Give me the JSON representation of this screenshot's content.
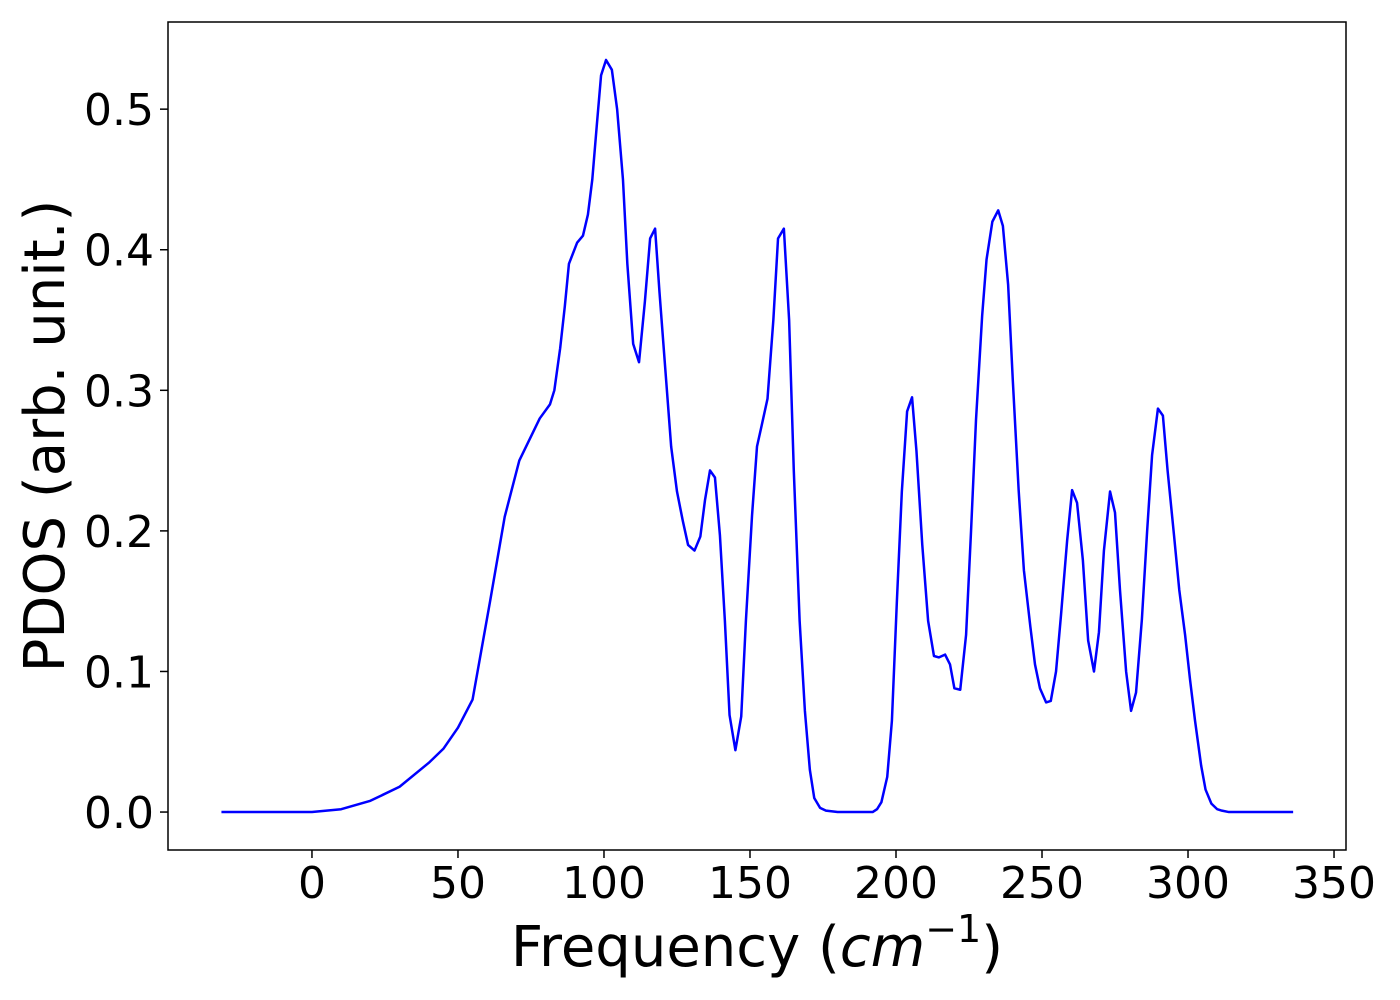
{
  "chart_data": {
    "type": "line",
    "xlabel": [
      "Frequency (",
      "cm",
      "−1",
      ")"
    ],
    "ylabel": "PDOS (arb. unit.)",
    "color": "#0000ff",
    "xlim": [
      -49.3,
      354.1
    ],
    "ylim": [
      -0.027,
      0.562
    ],
    "xticks": [
      0,
      50,
      100,
      150,
      200,
      250,
      300,
      350
    ],
    "yticks": [
      {
        "value": 0,
        "label": "0.0"
      },
      0.1,
      0.2,
      0.3,
      0.4,
      0.5
    ],
    "grid": false,
    "x": [
      -31,
      -20,
      -10,
      0,
      10,
      20,
      30,
      40,
      45,
      50,
      55,
      61,
      66,
      71,
      78,
      81.5,
      83,
      85,
      86.6,
      88,
      90.8,
      92.8,
      94.5,
      96,
      97.6,
      99,
      100.7,
      102.7,
      104.5,
      106.5,
      108,
      110,
      112,
      114,
      115.8,
      117.5,
      119,
      121,
      123,
      125,
      127,
      128.8,
      131,
      133,
      134.6,
      136.3,
      138,
      139.7,
      141.4,
      143,
      145,
      147,
      148.6,
      150.7,
      152.4,
      154,
      156,
      158,
      159.6,
      161.6,
      163.4,
      165,
      167,
      168.8,
      170.5,
      172,
      174,
      176,
      180,
      192,
      193.5,
      195,
      197,
      198.6,
      200.3,
      202,
      203.8,
      205.5,
      207,
      209,
      211,
      213,
      214.7,
      216.8,
      218.5,
      220,
      222,
      224,
      225.7,
      227.4,
      229.5,
      231,
      233,
      235,
      236.6,
      238.4,
      240,
      242,
      243.8,
      246,
      247.6,
      249.3,
      251.4,
      253,
      254.8,
      256.5,
      258.6,
      260.3,
      262,
      264,
      265.8,
      267.8,
      269.5,
      271.2,
      273.3,
      275,
      276.7,
      278.8,
      280.5,
      282.2,
      284.2,
      286,
      287.7,
      289.7,
      291.4,
      293,
      295.2,
      297,
      299,
      300.7,
      302.4,
      304.5,
      306,
      308,
      310,
      311.6,
      314,
      336
    ],
    "values": [
      0,
      0,
      0,
      0,
      0.002,
      0.008,
      0.018,
      0.035,
      0.045,
      0.06,
      0.08,
      0.15,
      0.21,
      0.25,
      0.28,
      0.29,
      0.3,
      0.33,
      0.36,
      0.39,
      0.405,
      0.41,
      0.425,
      0.45,
      0.49,
      0.524,
      0.535,
      0.528,
      0.5,
      0.45,
      0.39,
      0.333,
      0.32,
      0.363,
      0.408,
      0.415,
      0.37,
      0.315,
      0.26,
      0.228,
      0.207,
      0.19,
      0.186,
      0.196,
      0.222,
      0.243,
      0.238,
      0.197,
      0.136,
      0.069,
      0.044,
      0.068,
      0.136,
      0.211,
      0.26,
      0.275,
      0.294,
      0.35,
      0.408,
      0.415,
      0.35,
      0.243,
      0.136,
      0.072,
      0.03,
      0.01,
      0.003,
      0.001,
      0,
      0,
      0.002,
      0.007,
      0.025,
      0.065,
      0.15,
      0.228,
      0.285,
      0.295,
      0.257,
      0.19,
      0.136,
      0.111,
      0.11,
      0.112,
      0.105,
      0.088,
      0.087,
      0.126,
      0.2,
      0.279,
      0.353,
      0.393,
      0.42,
      0.428,
      0.417,
      0.375,
      0.307,
      0.229,
      0.172,
      0.132,
      0.105,
      0.088,
      0.078,
      0.079,
      0.1,
      0.14,
      0.193,
      0.229,
      0.22,
      0.179,
      0.122,
      0.1,
      0.128,
      0.186,
      0.228,
      0.213,
      0.158,
      0.1,
      0.072,
      0.085,
      0.137,
      0.2,
      0.254,
      0.287,
      0.282,
      0.243,
      0.197,
      0.158,
      0.126,
      0.094,
      0.065,
      0.033,
      0.016,
      0.006,
      0.002,
      0.001,
      0,
      0
    ]
  }
}
